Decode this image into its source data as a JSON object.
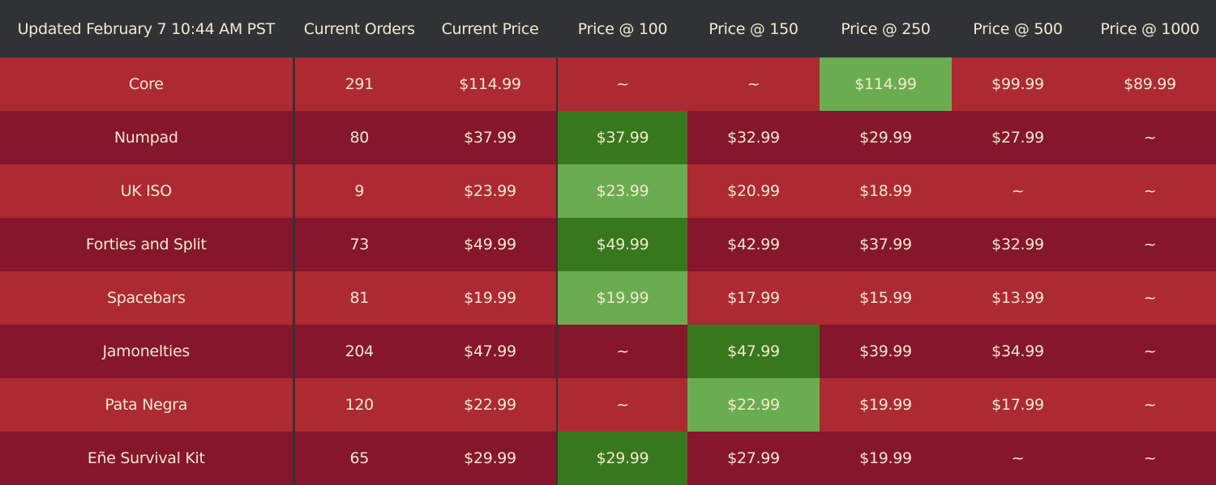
{
  "header": {
    "updated": "Updated February 7  10:44 AM PST",
    "columns": [
      "Current Orders",
      "Current Price",
      "Price @ 100",
      "Price @ 150",
      "Price @ 250",
      "Price @ 500",
      "Price @ 1000"
    ]
  },
  "colors": {
    "header_bg": "#303336",
    "row_light": "#ad2a33",
    "row_dark": "#85162b",
    "highlight_light": "#6aad50",
    "highlight_dark": "#37781c",
    "text": "#f3e8cf"
  },
  "rows": [
    {
      "name": "Core",
      "orders": "291",
      "current_price": "$114.99",
      "tiers": [
        "~",
        "~",
        "$114.99",
        "$99.99",
        "$89.99"
      ],
      "highlight_tier": 2
    },
    {
      "name": "Numpad",
      "orders": "80",
      "current_price": "$37.99",
      "tiers": [
        "$37.99",
        "$32.99",
        "$29.99",
        "$27.99",
        "~"
      ],
      "highlight_tier": 0
    },
    {
      "name": "UK ISO",
      "orders": "9",
      "current_price": "$23.99",
      "tiers": [
        "$23.99",
        "$20.99",
        "$18.99",
        "~",
        "~"
      ],
      "highlight_tier": 0
    },
    {
      "name": "Forties and Split",
      "orders": "73",
      "current_price": "$49.99",
      "tiers": [
        "$49.99",
        "$42.99",
        "$37.99",
        "$32.99",
        "~"
      ],
      "highlight_tier": 0
    },
    {
      "name": "Spacebars",
      "orders": "81",
      "current_price": "$19.99",
      "tiers": [
        "$19.99",
        "$17.99",
        "$15.99",
        "$13.99",
        "~"
      ],
      "highlight_tier": 0
    },
    {
      "name": "Jamonelties",
      "orders": "204",
      "current_price": "$47.99",
      "tiers": [
        "~",
        "$47.99",
        "$39.99",
        "$34.99",
        "~"
      ],
      "highlight_tier": 1
    },
    {
      "name": "Pata Negra",
      "orders": "120",
      "current_price": "$22.99",
      "tiers": [
        "~",
        "$22.99",
        "$19.99",
        "$17.99",
        "~"
      ],
      "highlight_tier": 1
    },
    {
      "name": "Eñe Survival Kit",
      "orders": "65",
      "current_price": "$29.99",
      "tiers": [
        "$29.99",
        "$27.99",
        "$19.99",
        "~",
        "~"
      ],
      "highlight_tier": 0
    }
  ]
}
